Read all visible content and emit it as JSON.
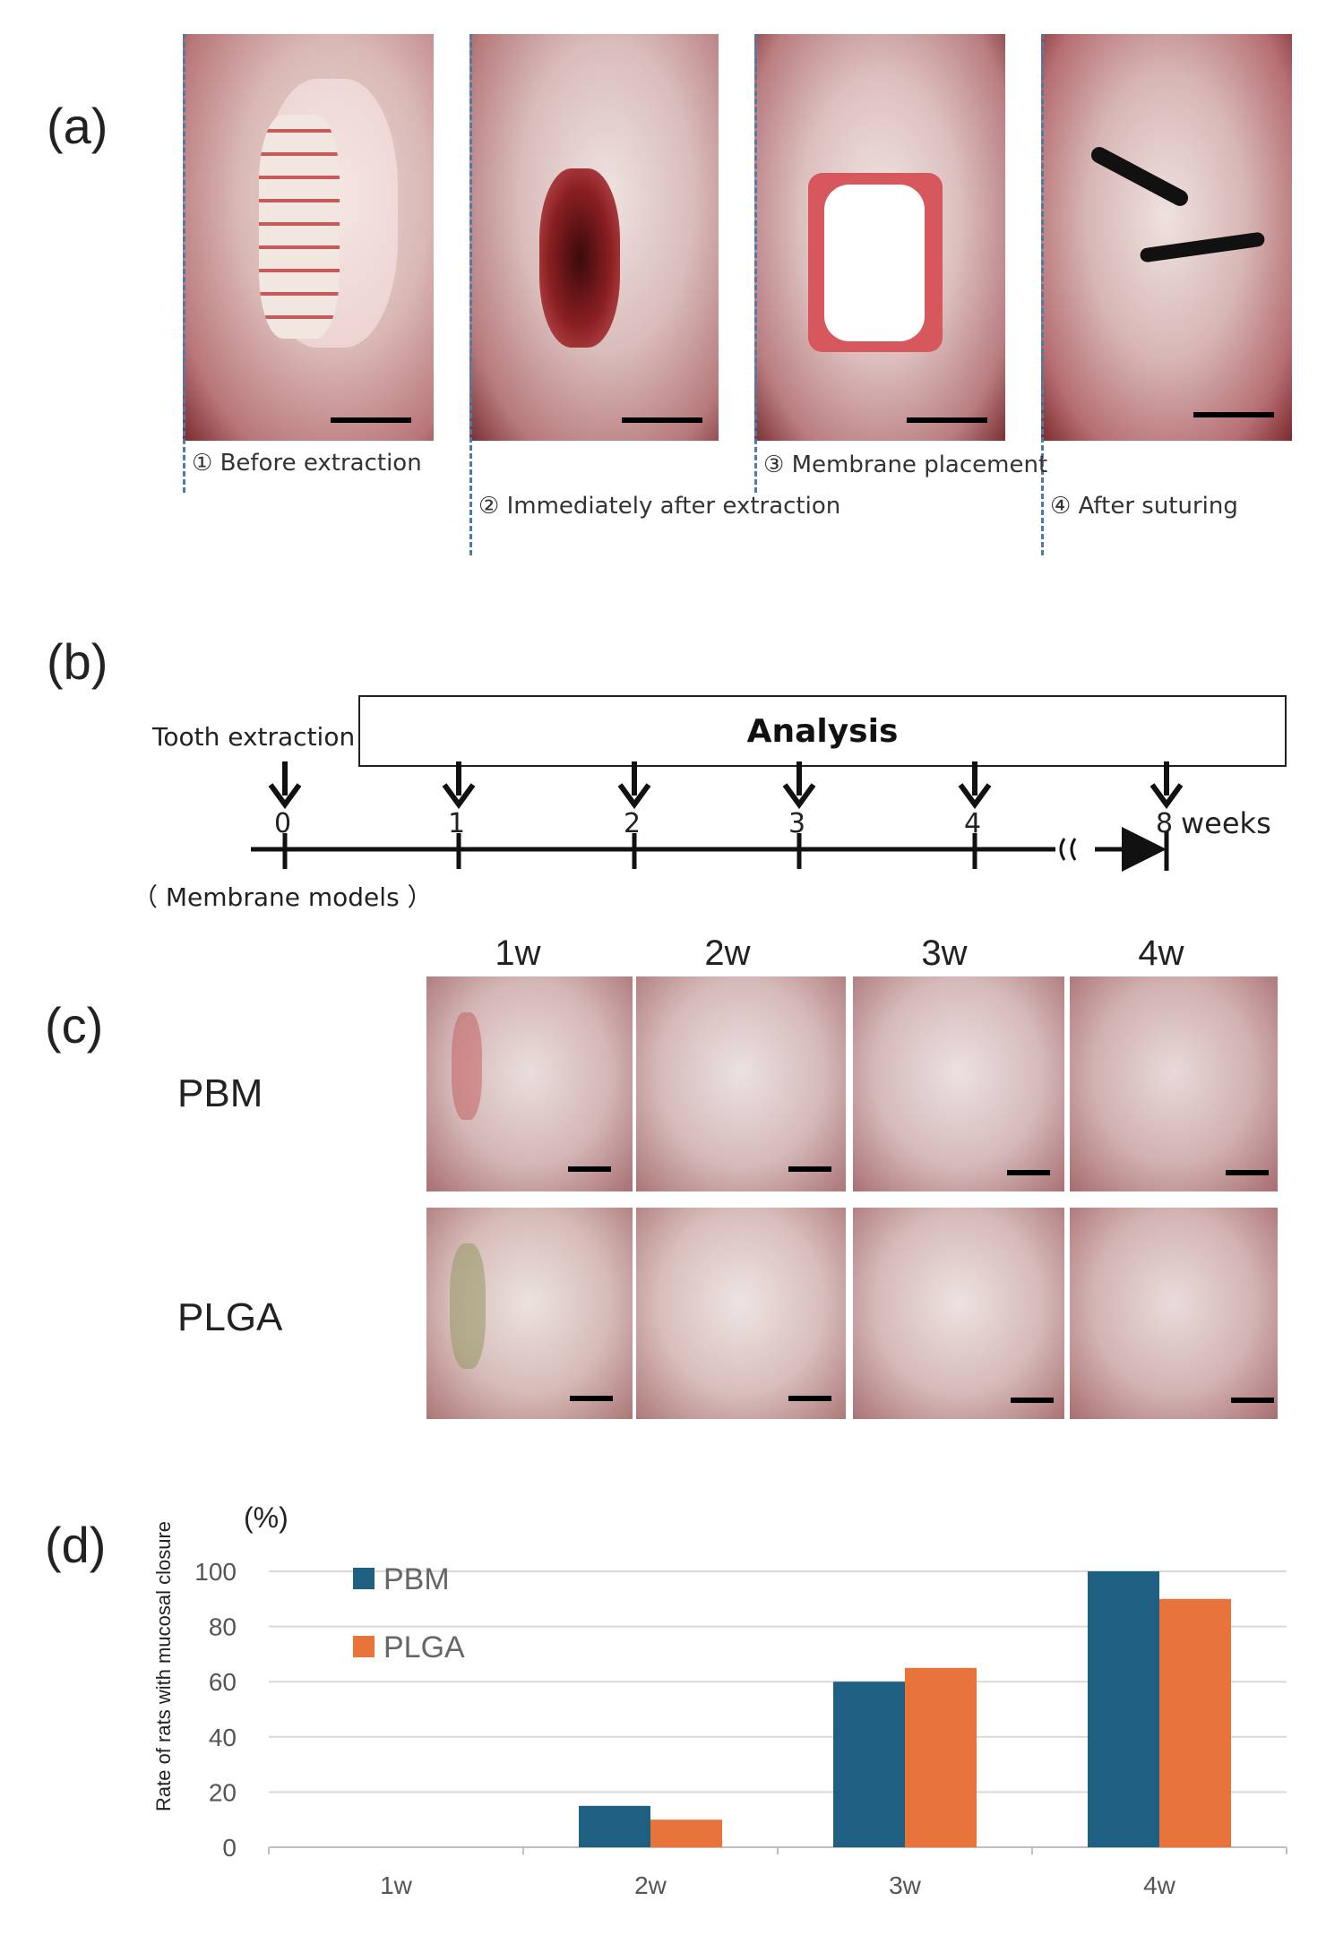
{
  "panels": {
    "a": "(a)",
    "b": "(b)",
    "c": "(c)",
    "d": "(d)"
  },
  "panel_a": {
    "captions": [
      "① Before extraction",
      "② Immediately after extraction",
      "③ Membrane placement",
      "④ After suturing"
    ]
  },
  "panel_b": {
    "tooth_extraction": "Tooth extraction",
    "analysis": "Analysis",
    "membrane_models": "（ Membrane models ）",
    "ticks": [
      "0",
      "1",
      "2",
      "3",
      "4",
      "8"
    ],
    "weeks": "weeks"
  },
  "panel_c": {
    "columns": [
      "1w",
      "2w",
      "3w",
      "4w"
    ],
    "rows": [
      "PBM",
      "PLGA"
    ]
  },
  "chart_data": {
    "type": "bar",
    "categories": [
      "1w",
      "2w",
      "3w",
      "4w"
    ],
    "series": [
      {
        "name": "PBM",
        "color": "#1f5f82",
        "values": [
          0,
          15,
          60,
          100
        ]
      },
      {
        "name": "PLGA",
        "color": "#e8743b",
        "values": [
          0,
          10,
          65,
          90
        ]
      }
    ],
    "ylabel": "Rate of rats with mucosal closure",
    "yunit": "(%)",
    "yticks": [
      "0",
      "20",
      "40",
      "60",
      "80",
      "100"
    ],
    "ylim": [
      0,
      100
    ],
    "grid": true,
    "legend": "top-left"
  }
}
